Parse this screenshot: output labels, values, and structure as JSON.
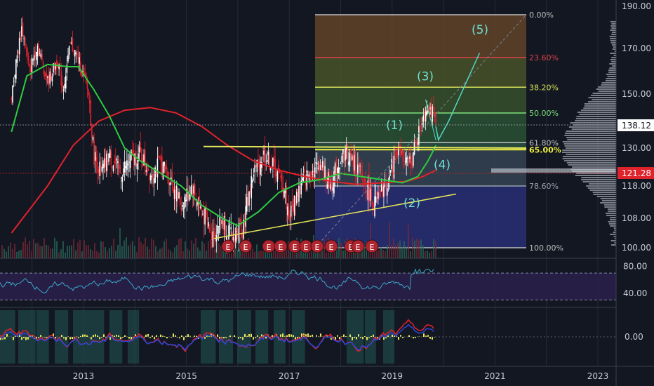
{
  "colors": {
    "background": "#131722",
    "grid": "#242a38",
    "ma_fast": "#2ecc40",
    "ma_slow": "#e0222b",
    "fib_fill_top": "#6b4a2a",
    "fib_fill_bottom": "#2b3380",
    "wave_label": "#6ee0cf",
    "trendline": "#e8e85a",
    "last_price_bg": "#ffffff",
    "ma_price_bg": "#e0222b"
  },
  "chart_data": [
    {
      "type": "line",
      "panel": "price",
      "description_source": "candlestick price chart with moving averages, Fibonacci retracement and Elliott wave labels",
      "x_ticks": [
        "2013",
        "2015",
        "2017",
        "2019",
        "2021",
        "2023"
      ],
      "y_ticks": [
        "190.00",
        "170.00",
        "150.00",
        "130.00",
        "118.00",
        "108.00",
        "100.00"
      ],
      "y_tick_values": [
        190,
        170,
        150,
        130,
        118,
        108,
        100
      ],
      "last_price": "138.12",
      "ma_price": "121.28",
      "ylim": [
        100,
        190
      ],
      "fibonacci": [
        {
          "label": "0.00%",
          "price": 186
        },
        {
          "label": "23.60%",
          "price": 166
        },
        {
          "label": "38.20%",
          "price": 153
        },
        {
          "label": "50.00%",
          "price": 143
        },
        {
          "label": "61.80%",
          "price": 132
        },
        {
          "label": "65.00%",
          "price": 129.5
        },
        {
          "label": "78.60%",
          "price": 118
        },
        {
          "label": "100.00%",
          "price": 100
        }
      ],
      "wave_labels": [
        "(1)",
        "(2)",
        "(3)",
        "(4)",
        "(5)"
      ],
      "earnings_markers": [
        "E",
        "E",
        "E",
        "E",
        "E",
        "E",
        "E",
        "E",
        "E",
        "E",
        "E",
        "E",
        "E"
      ],
      "series": [
        {
          "key": "price",
          "points": [
            [
              2011.6,
              150
            ],
            [
              2011.8,
              180
            ],
            [
              2011.95,
              160
            ],
            [
              2012.1,
              172
            ],
            [
              2012.3,
              155
            ],
            [
              2012.5,
              165
            ],
            [
              2012.6,
              152
            ],
            [
              2012.75,
              172
            ],
            [
              2012.9,
              165
            ],
            [
              2013.1,
              150
            ],
            [
              2013.2,
              128
            ],
            [
              2013.35,
              122
            ],
            [
              2013.5,
              128
            ],
            [
              2013.7,
              122
            ],
            [
              2013.9,
              126
            ],
            [
              2014.1,
              128
            ],
            [
              2014.3,
              122
            ],
            [
              2014.5,
              125
            ],
            [
              2014.7,
              120
            ],
            [
              2014.9,
              112
            ],
            [
              2015.1,
              118
            ],
            [
              2015.3,
              110
            ],
            [
              2015.5,
              104
            ],
            [
              2015.7,
              108
            ],
            [
              2015.9,
              102
            ],
            [
              2016.1,
              106
            ],
            [
              2016.3,
              122
            ],
            [
              2016.5,
              128
            ],
            [
              2016.7,
              124
            ],
            [
              2016.9,
              117
            ],
            [
              2017.0,
              108
            ],
            [
              2017.2,
              118
            ],
            [
              2017.4,
              122
            ],
            [
              2017.6,
              125
            ],
            [
              2017.8,
              118
            ],
            [
              2017.95,
              125
            ],
            [
              2018.1,
              129
            ],
            [
              2018.3,
              124
            ],
            [
              2018.5,
              118
            ],
            [
              2018.65,
              112
            ],
            [
              2018.8,
              116
            ],
            [
              2018.95,
              121
            ],
            [
              2019.1,
              130
            ],
            [
              2019.25,
              124
            ],
            [
              2019.4,
              127
            ],
            [
              2019.5,
              134
            ],
            [
              2019.6,
              142
            ],
            [
              2019.7,
              146
            ],
            [
              2019.8,
              142
            ],
            [
              2019.85,
              138
            ]
          ]
        },
        {
          "key": "ma_fast",
          "points": [
            [
              2011.6,
              136
            ],
            [
              2011.9,
              158
            ],
            [
              2012.3,
              163
            ],
            [
              2012.7,
              162
            ],
            [
              2012.9,
              162
            ],
            [
              2013.2,
              152
            ],
            [
              2013.5,
              142
            ],
            [
              2013.8,
              130
            ],
            [
              2014.1,
              126
            ],
            [
              2014.5,
              122
            ],
            [
              2014.9,
              118
            ],
            [
              2015.3,
              112
            ],
            [
              2015.7,
              108
            ],
            [
              2016.0,
              106
            ],
            [
              2016.4,
              110
            ],
            [
              2016.8,
              116
            ],
            [
              2017.2,
              119
            ],
            [
              2017.6,
              120
            ],
            [
              2018.0,
              122
            ],
            [
              2018.4,
              121
            ],
            [
              2018.8,
              120
            ],
            [
              2019.2,
              119
            ],
            [
              2019.5,
              121
            ],
            [
              2019.7,
              126
            ],
            [
              2019.85,
              131
            ]
          ]
        },
        {
          "key": "ma_slow",
          "points": [
            [
              2011.6,
              104
            ],
            [
              2012.3,
              118
            ],
            [
              2012.8,
              131
            ],
            [
              2013.3,
              140
            ],
            [
              2013.8,
              144
            ],
            [
              2014.3,
              145
            ],
            [
              2014.8,
              143
            ],
            [
              2015.3,
              138
            ],
            [
              2015.8,
              131
            ],
            [
              2016.3,
              126
            ],
            [
              2016.8,
              123
            ],
            [
              2017.3,
              121
            ],
            [
              2017.8,
              119.5
            ],
            [
              2018.3,
              118.5
            ],
            [
              2018.8,
              119
            ],
            [
              2019.3,
              119.5
            ],
            [
              2019.6,
              121
            ],
            [
              2019.85,
              123
            ]
          ]
        }
      ]
    },
    {
      "type": "line",
      "panel": "oscillator_1",
      "y_ticks": [
        "80.00",
        "40.00"
      ],
      "y_tick_values": [
        80,
        40
      ],
      "ylim": [
        20,
        90
      ],
      "bands": [
        70,
        30
      ]
    },
    {
      "type": "line",
      "panel": "oscillator_2",
      "y_ticks": [
        "0.00"
      ],
      "y_tick_values": [
        0
      ]
    }
  ]
}
